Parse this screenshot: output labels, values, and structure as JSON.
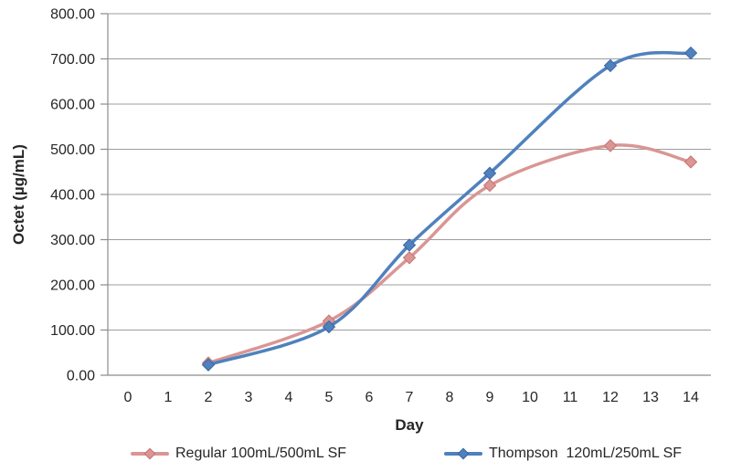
{
  "chart_data": {
    "type": "line",
    "title": "",
    "xlabel": "Day",
    "ylabel": "Octet (µg/mL)",
    "categories": [
      0,
      1,
      2,
      3,
      4,
      5,
      6,
      7,
      8,
      9,
      10,
      11,
      12,
      13,
      14
    ],
    "x_tick_labels": [
      "0",
      "1",
      "2",
      "3",
      "4",
      "5",
      "6",
      "7",
      "8",
      "9",
      "10",
      "11",
      "12",
      "13",
      "14"
    ],
    "y_ticks": [
      0,
      100,
      200,
      300,
      400,
      500,
      600,
      700,
      800
    ],
    "y_tick_labels": [
      "0.00",
      "100.00",
      "200.00",
      "300.00",
      "400.00",
      "500.00",
      "600.00",
      "700.00",
      "800.00"
    ],
    "ylim": [
      0,
      800
    ],
    "grid": "horizontal",
    "line_style": "smooth",
    "marker": "diamond",
    "legend_position": "bottom",
    "series": [
      {
        "name": "Regular 100mL/500mL SF",
        "color": "#D99694",
        "marker_stroke": "#C67472",
        "x": [
          2,
          5,
          7,
          9,
          12,
          14
        ],
        "values": [
          27,
          120,
          260,
          420,
          508,
          472
        ]
      },
      {
        "name": "Thompson  120mL/250mL SF",
        "color": "#4F81BD",
        "marker_stroke": "#3A67A5",
        "x": [
          2,
          5,
          7,
          9,
          12,
          14
        ],
        "values": [
          23,
          107,
          288,
          447,
          685,
          713
        ]
      }
    ],
    "colors": {
      "gridline": "#9C9C9C",
      "axis_line": "#8C8C8C",
      "text": "#262626",
      "background": "#FFFFFF"
    }
  }
}
